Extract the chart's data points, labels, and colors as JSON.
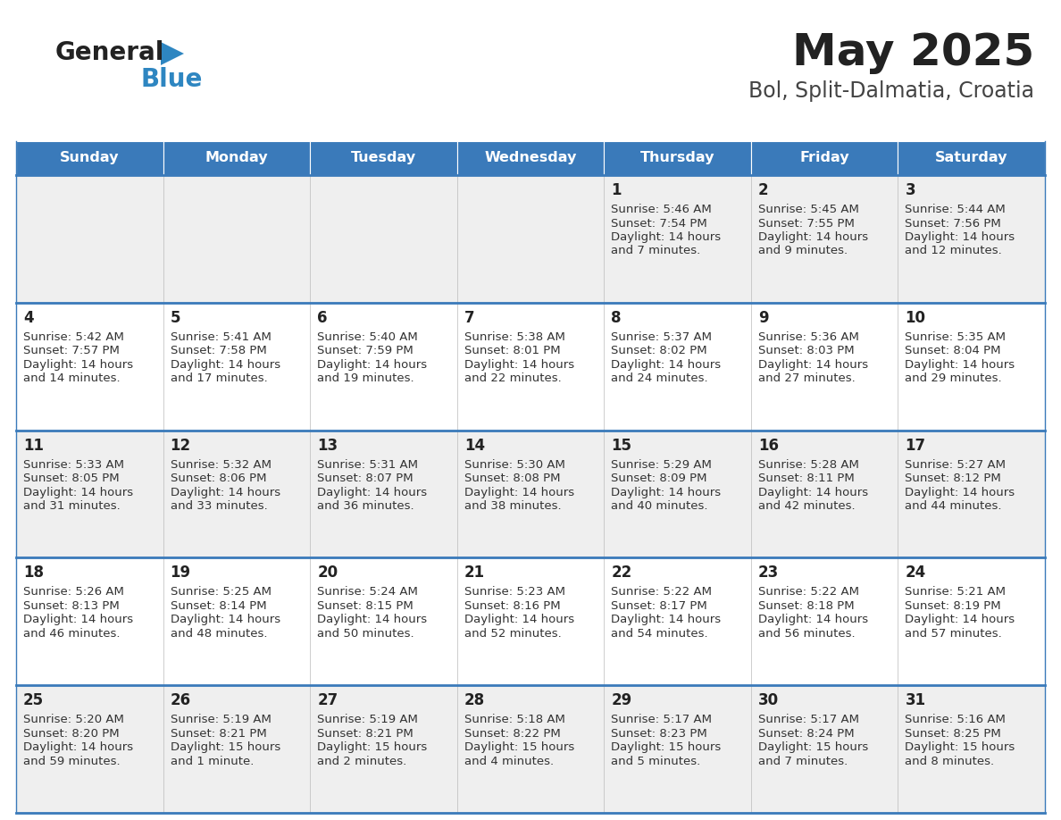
{
  "title": "May 2025",
  "subtitle": "Bol, Split-Dalmatia, Croatia",
  "days_of_week": [
    "Sunday",
    "Monday",
    "Tuesday",
    "Wednesday",
    "Thursday",
    "Friday",
    "Saturday"
  ],
  "header_bg": "#3a7aba",
  "header_text": "#ffffff",
  "cell_bg_even": "#efefef",
  "cell_bg_odd": "#ffffff",
  "row_line_color": "#3a7aba",
  "text_color": "#333333",
  "day_num_color": "#222222",
  "title_color": "#222222",
  "subtitle_color": "#444444",
  "logo_general_color": "#222222",
  "logo_blue_color": "#2e86c1",
  "calendar_data": [
    [
      null,
      null,
      null,
      null,
      {
        "day": 1,
        "sunrise": "5:46 AM",
        "sunset": "7:54 PM",
        "daylight": "14 hours",
        "daylight2": "and 7 minutes."
      },
      {
        "day": 2,
        "sunrise": "5:45 AM",
        "sunset": "7:55 PM",
        "daylight": "14 hours",
        "daylight2": "and 9 minutes."
      },
      {
        "day": 3,
        "sunrise": "5:44 AM",
        "sunset": "7:56 PM",
        "daylight": "14 hours",
        "daylight2": "and 12 minutes."
      }
    ],
    [
      {
        "day": 4,
        "sunrise": "5:42 AM",
        "sunset": "7:57 PM",
        "daylight": "14 hours",
        "daylight2": "and 14 minutes."
      },
      {
        "day": 5,
        "sunrise": "5:41 AM",
        "sunset": "7:58 PM",
        "daylight": "14 hours",
        "daylight2": "and 17 minutes."
      },
      {
        "day": 6,
        "sunrise": "5:40 AM",
        "sunset": "7:59 PM",
        "daylight": "14 hours",
        "daylight2": "and 19 minutes."
      },
      {
        "day": 7,
        "sunrise": "5:38 AM",
        "sunset": "8:01 PM",
        "daylight": "14 hours",
        "daylight2": "and 22 minutes."
      },
      {
        "day": 8,
        "sunrise": "5:37 AM",
        "sunset": "8:02 PM",
        "daylight": "14 hours",
        "daylight2": "and 24 minutes."
      },
      {
        "day": 9,
        "sunrise": "5:36 AM",
        "sunset": "8:03 PM",
        "daylight": "14 hours",
        "daylight2": "and 27 minutes."
      },
      {
        "day": 10,
        "sunrise": "5:35 AM",
        "sunset": "8:04 PM",
        "daylight": "14 hours",
        "daylight2": "and 29 minutes."
      }
    ],
    [
      {
        "day": 11,
        "sunrise": "5:33 AM",
        "sunset": "8:05 PM",
        "daylight": "14 hours",
        "daylight2": "and 31 minutes."
      },
      {
        "day": 12,
        "sunrise": "5:32 AM",
        "sunset": "8:06 PM",
        "daylight": "14 hours",
        "daylight2": "and 33 minutes."
      },
      {
        "day": 13,
        "sunrise": "5:31 AM",
        "sunset": "8:07 PM",
        "daylight": "14 hours",
        "daylight2": "and 36 minutes."
      },
      {
        "day": 14,
        "sunrise": "5:30 AM",
        "sunset": "8:08 PM",
        "daylight": "14 hours",
        "daylight2": "and 38 minutes."
      },
      {
        "day": 15,
        "sunrise": "5:29 AM",
        "sunset": "8:09 PM",
        "daylight": "14 hours",
        "daylight2": "and 40 minutes."
      },
      {
        "day": 16,
        "sunrise": "5:28 AM",
        "sunset": "8:11 PM",
        "daylight": "14 hours",
        "daylight2": "and 42 minutes."
      },
      {
        "day": 17,
        "sunrise": "5:27 AM",
        "sunset": "8:12 PM",
        "daylight": "14 hours",
        "daylight2": "and 44 minutes."
      }
    ],
    [
      {
        "day": 18,
        "sunrise": "5:26 AM",
        "sunset": "8:13 PM",
        "daylight": "14 hours",
        "daylight2": "and 46 minutes."
      },
      {
        "day": 19,
        "sunrise": "5:25 AM",
        "sunset": "8:14 PM",
        "daylight": "14 hours",
        "daylight2": "and 48 minutes."
      },
      {
        "day": 20,
        "sunrise": "5:24 AM",
        "sunset": "8:15 PM",
        "daylight": "14 hours",
        "daylight2": "and 50 minutes."
      },
      {
        "day": 21,
        "sunrise": "5:23 AM",
        "sunset": "8:16 PM",
        "daylight": "14 hours",
        "daylight2": "and 52 minutes."
      },
      {
        "day": 22,
        "sunrise": "5:22 AM",
        "sunset": "8:17 PM",
        "daylight": "14 hours",
        "daylight2": "and 54 minutes."
      },
      {
        "day": 23,
        "sunrise": "5:22 AM",
        "sunset": "8:18 PM",
        "daylight": "14 hours",
        "daylight2": "and 56 minutes."
      },
      {
        "day": 24,
        "sunrise": "5:21 AM",
        "sunset": "8:19 PM",
        "daylight": "14 hours",
        "daylight2": "and 57 minutes."
      }
    ],
    [
      {
        "day": 25,
        "sunrise": "5:20 AM",
        "sunset": "8:20 PM",
        "daylight": "14 hours",
        "daylight2": "and 59 minutes."
      },
      {
        "day": 26,
        "sunrise": "5:19 AM",
        "sunset": "8:21 PM",
        "daylight": "15 hours",
        "daylight2": "and 1 minute."
      },
      {
        "day": 27,
        "sunrise": "5:19 AM",
        "sunset": "8:21 PM",
        "daylight": "15 hours",
        "daylight2": "and 2 minutes."
      },
      {
        "day": 28,
        "sunrise": "5:18 AM",
        "sunset": "8:22 PM",
        "daylight": "15 hours",
        "daylight2": "and 4 minutes."
      },
      {
        "day": 29,
        "sunrise": "5:17 AM",
        "sunset": "8:23 PM",
        "daylight": "15 hours",
        "daylight2": "and 5 minutes."
      },
      {
        "day": 30,
        "sunrise": "5:17 AM",
        "sunset": "8:24 PM",
        "daylight": "15 hours",
        "daylight2": "and 7 minutes."
      },
      {
        "day": 31,
        "sunrise": "5:16 AM",
        "sunset": "8:25 PM",
        "daylight": "15 hours",
        "daylight2": "and 8 minutes."
      }
    ]
  ]
}
